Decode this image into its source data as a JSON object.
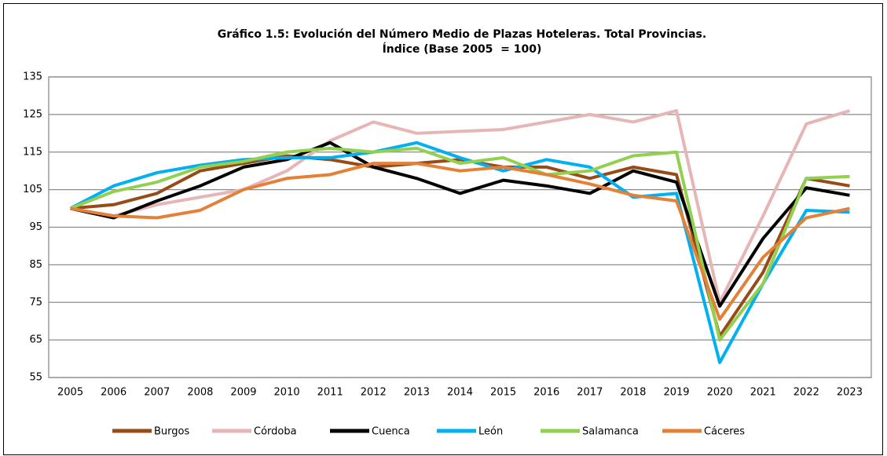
{
  "chart_data": {
    "type": "line",
    "title": "Gráfico 1.5: Evolución del Número Medio de Plazas Hoteleras. Total Provincias.",
    "subtitle": "Índice (Base 2005  = 100)",
    "categories": [
      "2005",
      "2006",
      "2007",
      "2008",
      "2009",
      "2010",
      "2011",
      "2012",
      "2013",
      "2014",
      "2015",
      "2016",
      "2017",
      "2018",
      "2019",
      "2020",
      "2021",
      "2022",
      "2023"
    ],
    "series": [
      {
        "name": "Burgos",
        "color": "#974c17",
        "values": [
          100,
          101,
          104,
          110,
          112,
          114,
          113,
          111,
          112,
          113,
          111,
          111,
          108,
          111,
          109,
          66,
          83,
          108,
          106
        ]
      },
      {
        "name": "Córdoba",
        "color": "#e6b5b5",
        "values": [
          100,
          98,
          101,
          103,
          105,
          110,
          118,
          123,
          120,
          120.5,
          121,
          123,
          125,
          123,
          126,
          75,
          98,
          122.5,
          126
        ]
      },
      {
        "name": "Cuenca",
        "color": "#000000",
        "values": [
          100,
          97.5,
          102,
          106,
          111,
          113,
          117.5,
          111,
          108,
          104,
          107.5,
          106,
          104,
          110,
          107,
          74,
          92,
          105.5,
          103.5
        ]
      },
      {
        "name": "León",
        "color": "#00b0f0",
        "values": [
          100,
          106,
          109.5,
          111.5,
          113,
          113.5,
          113.5,
          115,
          117.5,
          113.5,
          110,
          113,
          111,
          103,
          104,
          59,
          80,
          99.5,
          99
        ]
      },
      {
        "name": "Salamanca",
        "color": "#92d050",
        "values": [
          100,
          104.5,
          107,
          111,
          112.5,
          115,
          116,
          115,
          116,
          112,
          113.5,
          109,
          110,
          114,
          115,
          65,
          80,
          108,
          108.5
        ]
      },
      {
        "name": "Cáceres",
        "color": "#e38139",
        "values": [
          100,
          98,
          97.5,
          99.5,
          105,
          108,
          109,
          112,
          112,
          110,
          111,
          109,
          106.5,
          103.5,
          102,
          70.5,
          87,
          97.5,
          100
        ]
      }
    ],
    "ylim": [
      55,
      135
    ],
    "yticks": [
      55,
      65,
      75,
      85,
      95,
      105,
      115,
      125,
      135
    ],
    "grid": true,
    "legend": "bottom"
  }
}
